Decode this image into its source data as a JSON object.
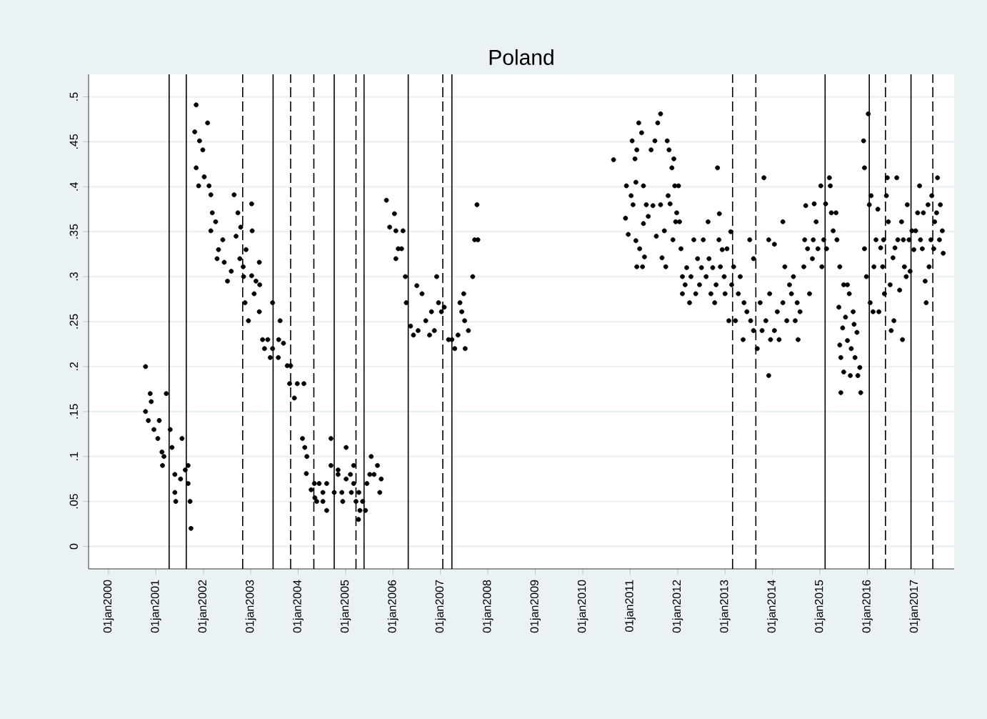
{
  "chart_data": {
    "type": "scatter",
    "title": "Poland",
    "color": "#000000",
    "grid": "y",
    "xlim": [
      "1999-08-01",
      "2017-10-31"
    ],
    "ylim": [
      -0.025,
      0.525
    ],
    "xticks": [
      {
        "value": "2000-01-01",
        "label": "01jan2000"
      },
      {
        "value": "2001-01-01",
        "label": "01jan2001"
      },
      {
        "value": "2002-01-01",
        "label": "01jan2002"
      },
      {
        "value": "2003-01-01",
        "label": "01jan2003"
      },
      {
        "value": "2004-01-01",
        "label": "01jan2004"
      },
      {
        "value": "2005-01-01",
        "label": "01jan2005"
      },
      {
        "value": "2006-01-01",
        "label": "01jan2006"
      },
      {
        "value": "2007-01-01",
        "label": "01jan2007"
      },
      {
        "value": "2008-01-01",
        "label": "01jan2008"
      },
      {
        "value": "2009-01-01",
        "label": "01jan2009"
      },
      {
        "value": "2010-01-01",
        "label": "01jan2010"
      },
      {
        "value": "2011-01-01",
        "label": "01jan2011"
      },
      {
        "value": "2012-01-01",
        "label": "01jan2012"
      },
      {
        "value": "2013-01-01",
        "label": "01jan2013"
      },
      {
        "value": "2014-01-01",
        "label": "01jan2014"
      },
      {
        "value": "2015-01-01",
        "label": "01jan2015"
      },
      {
        "value": "2016-01-01",
        "label": "01jan2016"
      },
      {
        "value": "2017-01-01",
        "label": "01jan2017"
      }
    ],
    "yticks": [
      0,
      {
        "value": 0.05,
        "label": ".05"
      },
      {
        "value": 0.1,
        "label": ".1"
      },
      {
        "value": 0.15,
        "label": ".15"
      },
      {
        "value": 0.2,
        "label": ".2"
      },
      {
        "value": 0.25,
        "label": ".25"
      },
      {
        "value": 0.3,
        "label": ".3"
      },
      {
        "value": 0.35,
        "label": ".35"
      },
      {
        "value": 0.4,
        "label": ".4"
      },
      {
        "value": 0.45,
        "label": ".45"
      },
      {
        "value": 0.5,
        "label": ".5"
      }
    ],
    "ref_lines": [
      {
        "axis": "x",
        "value": "2001-04-13",
        "line_style": "solid"
      },
      {
        "axis": "x",
        "value": "2001-08-23",
        "line_style": "solid"
      },
      {
        "axis": "x",
        "value": "2002-10-31",
        "line_style": "dashed"
      },
      {
        "axis": "x",
        "value": "2003-06-22",
        "line_style": "solid"
      },
      {
        "axis": "x",
        "value": "2003-11-04",
        "line_style": "dashed"
      },
      {
        "axis": "x",
        "value": "2004-05-01",
        "line_style": "dashed"
      },
      {
        "axis": "x",
        "value": "2004-10-05",
        "line_style": "solid"
      },
      {
        "axis": "x",
        "value": "2005-03-22",
        "line_style": "dashed"
      },
      {
        "axis": "x",
        "value": "2005-05-23",
        "line_style": "solid"
      },
      {
        "axis": "x",
        "value": "2006-04-28",
        "line_style": "solid"
      },
      {
        "axis": "x",
        "value": "2007-01-19",
        "line_style": "dashed"
      },
      {
        "axis": "x",
        "value": "2007-03-30",
        "line_style": "solid"
      },
      {
        "axis": "x",
        "value": "2013-02-28",
        "line_style": "dashed"
      },
      {
        "axis": "x",
        "value": "2013-08-26",
        "line_style": "dashed"
      },
      {
        "axis": "x",
        "value": "2015-02-10",
        "line_style": "solid"
      },
      {
        "axis": "x",
        "value": "2016-01-16",
        "line_style": "solid"
      },
      {
        "axis": "x",
        "value": "2016-05-20",
        "line_style": "dashed"
      },
      {
        "axis": "x",
        "value": "2016-12-03",
        "line_style": "solid"
      },
      {
        "axis": "x",
        "value": "2017-05-20",
        "line_style": "dashed"
      }
    ],
    "x": [
      "2000-10-13",
      "2000-10-13",
      "2000-11-04",
      "2000-11-18",
      "2000-11-26",
      "2000-12-17",
      "2001-01-27",
      "2001-01-16",
      "2001-02-17",
      "2001-03-22",
      "2001-02-21",
      "2001-04-21",
      "2001-05-05",
      "2001-05-27",
      "2001-06-03",
      "2001-05-27",
      "2001-07-21",
      "2001-08-15",
      "2001-09-06",
      "2001-09-06",
      "2001-09-21",
      "2001-09-28",
      "2001-07-10",
      "2001-03-04",
      "2001-10-27",
      "2001-11-07",
      "2001-11-07",
      "2001-12-03",
      "2001-12-28",
      "2001-11-26",
      "2002-02-03",
      "2002-01-08",
      "2002-02-14",
      "2002-02-28",
      "2002-03-11",
      "2002-04-06",
      "2002-02-28",
      "2002-04-28",
      "2002-04-17",
      "2002-05-31",
      "2002-06-11",
      "2002-07-06",
      "2002-08-04",
      "2002-08-26",
      "2002-09-10",
      "2002-09-24",
      "2002-10-09",
      "2002-10-16",
      "2002-11-04",
      "2002-11-07",
      "2002-11-18",
      "2002-11-26",
      "2002-12-14",
      "2003-01-08",
      "2003-01-12",
      "2003-01-08",
      "2003-01-27",
      "2003-02-10",
      "2003-03-08",
      "2003-03-08",
      "2003-03-11",
      "2003-04-02",
      "2003-04-17",
      "2003-05-12",
      "2003-05-31",
      "2003-06-18",
      "2003-06-18",
      "2003-08-01",
      "2003-08-15",
      "2003-08-04",
      "2003-09-10",
      "2003-10-09",
      "2003-11-04",
      "2003-10-27",
      "2003-12-03",
      "2003-12-25",
      "2004-02-14",
      "2004-02-03",
      "2004-02-21",
      "2004-03-08",
      "2004-03-04",
      "2004-04-10",
      "2004-05-05",
      "2004-05-09",
      "2004-05-23",
      "2004-06-11",
      "2004-07-10",
      "2004-07-10",
      "2004-08-08",
      "2004-08-08",
      "2004-09-10",
      "2004-09-10",
      "2004-10-05",
      "2004-11-04",
      "2004-11-04",
      "2004-12-03",
      "2004-12-10",
      "2005-01-05",
      "2005-01-05",
      "2005-02-07",
      "2005-02-14",
      "2005-03-04",
      "2005-03-04",
      "2005-03-22",
      "2005-04-10",
      "2005-04-13",
      "2005-04-21",
      "2005-05-12",
      "2005-06-03",
      "2005-06-14",
      "2005-07-06",
      "2005-07-17",
      "2005-08-08",
      "2005-09-03",
      "2005-09-21",
      "2005-10-02",
      "2005-11-11",
      "2005-12-06",
      "2006-01-12",
      "2006-01-23",
      "2006-01-23",
      "2006-02-10",
      "2006-03-08",
      "2006-03-19",
      "2006-04-06",
      "2006-04-13",
      "2006-05-16",
      "2006-06-07",
      "2006-07-03",
      "2006-07-13",
      "2006-08-12",
      "2006-09-10",
      "2006-10-09",
      "2006-10-24",
      "2006-11-15",
      "2006-12-03",
      "2006-12-17",
      "2007-01-08",
      "2007-01-30",
      "2007-03-04",
      "2007-03-30",
      "2007-04-21",
      "2007-05-16",
      "2007-05-31",
      "2007-06-14",
      "2007-06-29",
      "2007-07-06",
      "2007-07-10",
      "2007-08-04",
      "2007-09-06",
      "2007-09-21",
      "2007-10-16",
      "2007-10-09",
      "2010-08-26",
      "2010-11-26",
      "2010-12-03",
      "2010-12-17",
      "2011-01-08",
      "2011-01-16",
      "2011-01-23",
      "2011-02-07",
      "2011-02-14",
      "2011-02-21",
      "2011-02-14",
      "2011-02-21",
      "2011-03-08",
      "2011-03-15",
      "2011-03-30",
      "2011-04-06",
      "2011-04-13",
      "2011-04-13",
      "2011-04-21",
      "2011-05-05",
      "2011-05-20",
      "2011-06-11",
      "2011-06-25",
      "2011-07-10",
      "2011-07-21",
      "2011-08-01",
      "2011-08-23",
      "2011-08-23",
      "2011-09-03",
      "2011-09-21",
      "2011-10-02",
      "2011-10-13",
      "2011-10-20",
      "2011-10-27",
      "2011-11-04",
      "2011-11-18",
      "2011-11-26",
      "2011-12-03",
      "2011-12-10",
      "2011-12-17",
      "2011-12-25",
      "2012-01-08",
      "2012-01-16",
      "2012-01-27",
      "2012-02-07",
      "2012-02-07",
      "2012-02-28",
      "2012-03-11",
      "2012-04-02",
      "2012-04-13",
      "2012-05-05",
      "2012-05-20",
      "2012-06-03",
      "2012-06-18",
      "2012-07-03",
      "2012-07-17",
      "2012-08-08",
      "2012-08-23",
      "2012-08-30",
      "2012-09-14",
      "2012-09-28",
      "2012-10-13",
      "2012-10-24",
      "2012-11-04",
      "2012-11-15",
      "2012-11-18",
      "2012-11-26",
      "2012-12-10",
      "2012-12-25",
      "2013-01-01",
      "2013-01-16",
      "2013-01-30",
      "2013-02-14",
      "2013-02-21",
      "2013-03-08",
      "2013-03-22",
      "2013-04-13",
      "2013-04-28",
      "2013-05-20",
      "2013-05-27",
      "2013-06-18",
      "2013-07-10",
      "2013-07-17",
      "2013-08-08",
      "2013-08-08",
      "2013-09-06",
      "2013-09-28",
      "2013-10-13",
      "2013-10-27",
      "2013-11-11",
      "2013-12-03",
      "2013-12-03",
      "2013-12-10",
      "2013-12-17",
      "2014-01-16",
      "2014-01-16",
      "2014-02-07",
      "2014-02-21",
      "2014-03-22",
      "2014-03-22",
      "2014-04-06",
      "2014-04-21",
      "2014-05-12",
      "2014-05-27",
      "2014-06-11",
      "2014-06-25",
      "2014-07-10",
      "2014-07-17",
      "2014-08-01",
      "2014-08-30",
      "2014-09-06",
      "2014-09-14",
      "2014-09-28",
      "2014-10-13",
      "2014-11-04",
      "2014-11-11",
      "2014-11-18",
      "2014-12-03",
      "2014-12-17",
      "2015-01-08",
      "2015-01-16",
      "2015-01-30",
      "2015-02-14",
      "2015-02-21",
      "2015-03-15",
      "2015-03-22",
      "2015-03-30",
      "2015-04-13",
      "2015-05-05",
      "2015-05-12",
      "2015-05-27",
      "2015-06-03",
      "2015-06-03",
      "2015-06-11",
      "2015-06-11",
      "2015-06-25",
      "2015-07-03",
      "2015-07-03",
      "2015-07-17",
      "2015-08-01",
      "2015-08-01",
      "2015-08-15",
      "2015-08-23",
      "2015-08-30",
      "2015-09-14",
      "2015-09-21",
      "2015-09-28",
      "2015-10-13",
      "2015-10-20",
      "2015-11-04",
      "2015-11-11",
      "2015-12-03",
      "2015-12-10",
      "2015-12-10",
      "2015-12-25",
      "2016-01-08",
      "2016-01-16",
      "2016-01-23",
      "2016-01-30",
      "2016-02-14",
      "2016-02-21",
      "2016-03-08",
      "2016-03-22",
      "2016-03-30",
      "2016-04-13",
      "2016-04-28",
      "2016-05-05",
      "2016-05-12",
      "2016-05-27",
      "2016-06-03",
      "2016-06-11",
      "2016-06-25",
      "2016-07-03",
      "2016-07-17",
      "2016-07-24",
      "2016-08-01",
      "2016-08-15",
      "2016-08-23",
      "2016-09-06",
      "2016-09-21",
      "2016-09-28",
      "2016-10-05",
      "2016-10-13",
      "2016-10-27",
      "2016-11-04",
      "2016-11-18",
      "2016-11-26",
      "2016-12-10",
      "2016-12-25",
      "2017-01-08",
      "2017-01-23",
      "2017-02-07",
      "2017-02-14",
      "2017-02-28",
      "2017-03-08",
      "2017-03-22",
      "2017-03-30",
      "2017-04-13",
      "2017-04-21",
      "2017-05-05",
      "2017-05-12",
      "2017-05-27",
      "2017-06-03",
      "2017-06-18",
      "2017-06-25",
      "2017-07-10",
      "2017-07-17",
      "2017-08-01",
      "2017-08-08"
    ],
    "values": [
      0.2,
      0.15,
      0.14,
      0.17,
      0.161,
      0.13,
      0.14,
      0.12,
      0.105,
      0.17,
      0.09,
      0.13,
      0.11,
      0.08,
      0.05,
      0.06,
      0.12,
      0.085,
      0.09,
      0.07,
      0.05,
      0.02,
      0.075,
      0.1,
      0.461,
      0.491,
      0.421,
      0.451,
      0.441,
      0.401,
      0.471,
      0.411,
      0.401,
      0.391,
      0.371,
      0.361,
      0.351,
      0.33,
      0.32,
      0.341,
      0.316,
      0.295,
      0.306,
      0.391,
      0.345,
      0.371,
      0.32,
      0.355,
      0.311,
      0.3,
      0.271,
      0.33,
      0.251,
      0.381,
      0.351,
      0.301,
      0.281,
      0.295,
      0.316,
      0.261,
      0.291,
      0.23,
      0.22,
      0.23,
      0.21,
      0.271,
      0.22,
      0.21,
      0.251,
      0.23,
      0.226,
      0.201,
      0.201,
      0.181,
      0.165,
      0.181,
      0.181,
      0.12,
      0.11,
      0.1,
      0.081,
      0.063,
      0.07,
      0.054,
      0.05,
      0.07,
      0.05,
      0.06,
      0.04,
      0.07,
      0.12,
      0.09,
      0.06,
      0.085,
      0.08,
      0.06,
      0.05,
      0.11,
      0.075,
      0.08,
      0.06,
      0.09,
      0.07,
      0.05,
      0.03,
      0.06,
      0.04,
      0.05,
      0.04,
      0.07,
      0.08,
      0.1,
      0.08,
      0.09,
      0.06,
      0.075,
      0.385,
      0.355,
      0.37,
      0.351,
      0.32,
      0.331,
      0.331,
      0.351,
      0.3,
      0.271,
      0.245,
      0.235,
      0.29,
      0.24,
      0.281,
      0.251,
      0.235,
      0.261,
      0.24,
      0.3,
      0.271,
      0.261,
      0.266,
      0.23,
      0.23,
      0.22,
      0.235,
      0.271,
      0.261,
      0.281,
      0.251,
      0.22,
      0.24,
      0.3,
      0.341,
      0.341,
      0.38,
      0.43,
      0.365,
      0.401,
      0.347,
      0.39,
      0.451,
      0.38,
      0.431,
      0.405,
      0.441,
      0.34,
      0.311,
      0.471,
      0.331,
      0.46,
      0.311,
      0.401,
      0.359,
      0.322,
      0.38,
      0.367,
      0.441,
      0.379,
      0.451,
      0.345,
      0.471,
      0.481,
      0.38,
      0.321,
      0.351,
      0.311,
      0.451,
      0.39,
      0.441,
      0.381,
      0.421,
      0.341,
      0.431,
      0.401,
      0.361,
      0.371,
      0.401,
      0.361,
      0.331,
      0.3,
      0.281,
      0.291,
      0.31,
      0.271,
      0.3,
      0.341,
      0.281,
      0.32,
      0.291,
      0.31,
      0.341,
      0.3,
      0.361,
      0.32,
      0.281,
      0.31,
      0.271,
      0.291,
      0.421,
      0.341,
      0.37,
      0.311,
      0.33,
      0.3,
      0.281,
      0.331,
      0.251,
      0.35,
      0.291,
      0.311,
      0.251,
      0.281,
      0.3,
      0.23,
      0.271,
      0.261,
      0.341,
      0.251,
      0.32,
      0.24,
      0.22,
      0.271,
      0.24,
      0.41,
      0.251,
      0.341,
      0.19,
      0.281,
      0.23,
      0.336,
      0.24,
      0.261,
      0.23,
      0.271,
      0.361,
      0.311,
      0.251,
      0.291,
      0.281,
      0.3,
      0.251,
      0.271,
      0.23,
      0.261,
      0.311,
      0.341,
      0.379,
      0.331,
      0.281,
      0.32,
      0.341,
      0.381,
      0.361,
      0.331,
      0.401,
      0.311,
      0.341,
      0.381,
      0.331,
      0.41,
      0.401,
      0.371,
      0.351,
      0.371,
      0.341,
      0.266,
      0.311,
      0.224,
      0.21,
      0.171,
      0.243,
      0.291,
      0.194,
      0.255,
      0.291,
      0.229,
      0.281,
      0.19,
      0.22,
      0.261,
      0.247,
      0.21,
      0.238,
      0.19,
      0.199,
      0.171,
      0.451,
      0.421,
      0.331,
      0.3,
      0.481,
      0.38,
      0.271,
      0.39,
      0.261,
      0.311,
      0.341,
      0.375,
      0.261,
      0.332,
      0.311,
      0.341,
      0.281,
      0.39,
      0.41,
      0.361,
      0.291,
      0.24,
      0.321,
      0.251,
      0.332,
      0.41,
      0.341,
      0.285,
      0.361,
      0.23,
      0.341,
      0.311,
      0.3,
      0.38,
      0.341,
      0.306,
      0.351,
      0.33,
      0.351,
      0.371,
      0.401,
      0.341,
      0.331,
      0.371,
      0.295,
      0.271,
      0.38,
      0.311,
      0.341,
      0.39,
      0.331,
      0.361,
      0.371,
      0.41,
      0.341,
      0.38,
      0.351,
      0.326
    ]
  }
}
